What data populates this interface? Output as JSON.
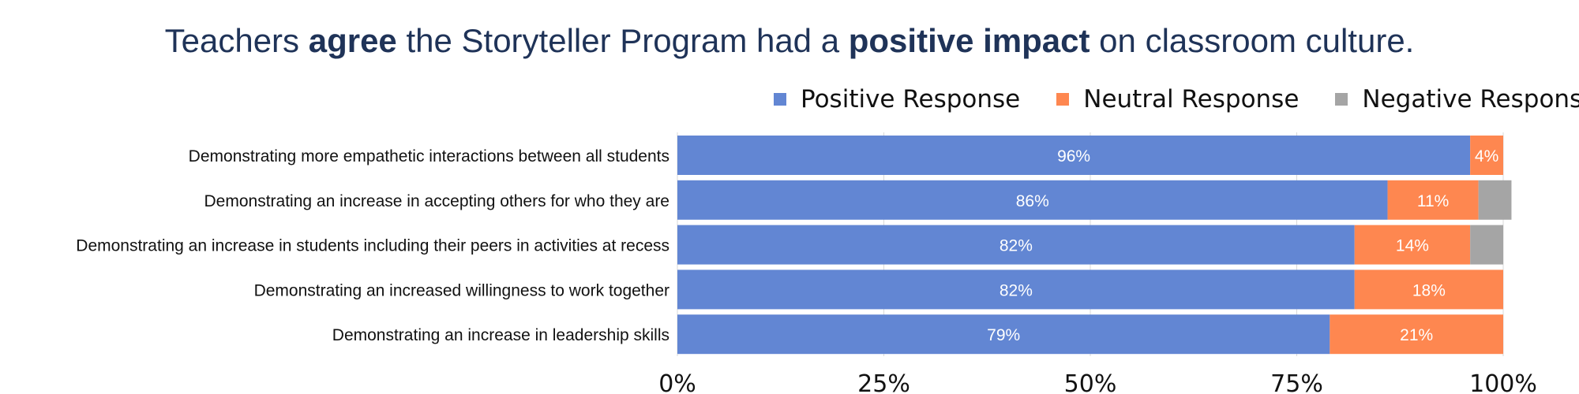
{
  "title": {
    "t1": "Teachers ",
    "t2": "agree",
    "t3": " the Storyteller Program had a ",
    "t4": "positive impact",
    "t5": " on classroom culture."
  },
  "legend": [
    {
      "label": "Positive Response",
      "color": "#6286d3"
    },
    {
      "label": "Neutral Response",
      "color": "#fe8750"
    },
    {
      "label": "Negative Response",
      "color": "#a5a5a5"
    }
  ],
  "chart_data": {
    "type": "bar",
    "orientation": "horizontal",
    "stacked": true,
    "categories": [
      "Demonstrating more empathetic interactions between all students",
      "Demonstrating an increase in accepting others for who they are",
      "Demonstrating an increase in students including their peers in activities at recess",
      "Demonstrating an increased willingness to work together",
      "Demonstrating an increase in leadership skills"
    ],
    "series": [
      {
        "name": "Positive Response",
        "values": [
          96,
          86,
          82,
          82,
          79
        ],
        "labels": [
          "96%",
          "86%",
          "82%",
          "82%",
          "79%"
        ]
      },
      {
        "name": "Neutral Response",
        "values": [
          4,
          11,
          14,
          18,
          21
        ],
        "labels": [
          "4%",
          "11%",
          "14%",
          "18%",
          "21%"
        ]
      },
      {
        "name": "Negative Response",
        "values": [
          0,
          4,
          4,
          0,
          0
        ],
        "labels": [
          "",
          "",
          "",
          "",
          ""
        ]
      }
    ],
    "xlim": [
      0,
      100
    ],
    "xticks": [
      "0%",
      "25%",
      "50%",
      "75%",
      "100%"
    ],
    "legend_position": "top-right",
    "grid": true
  }
}
